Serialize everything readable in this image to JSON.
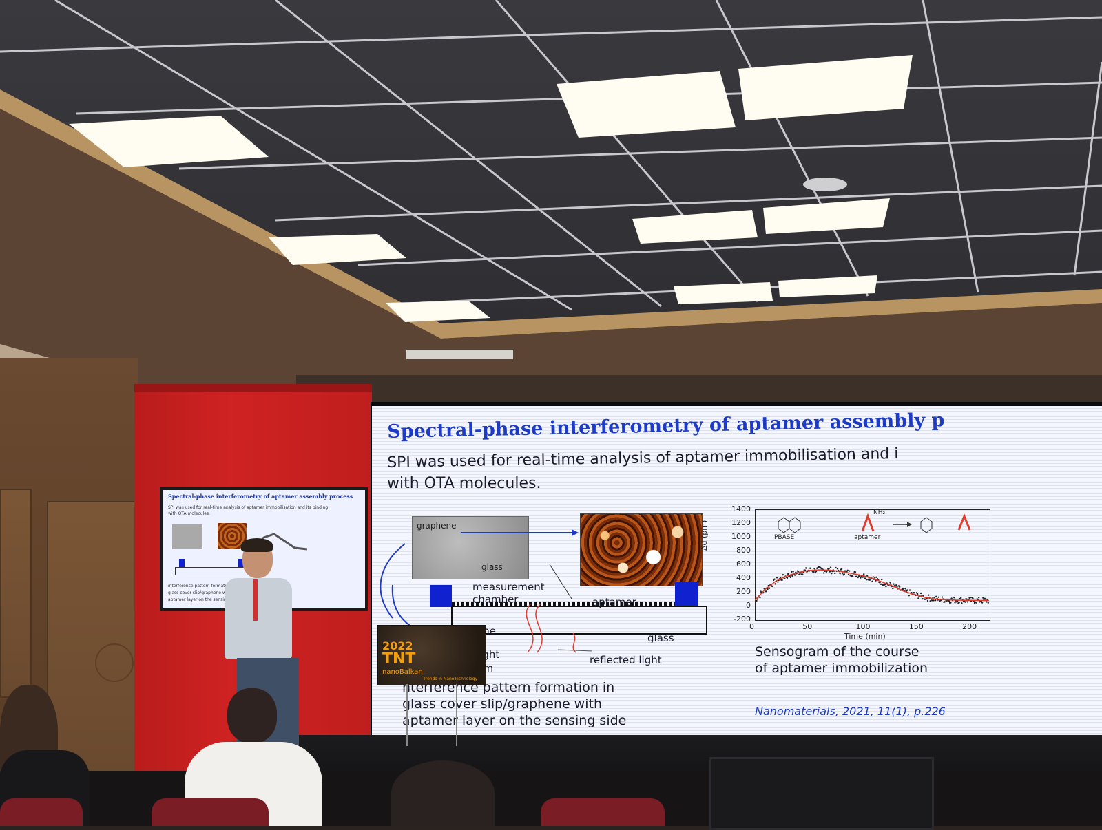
{
  "slide": {
    "title": "Spectral-phase interferometry of aptamer assembly p",
    "subtitle_line1": "SPI was used for real-time analysis of aptamer immobilisation and i",
    "subtitle_line2": "with OTA molecules.",
    "graphene_label": "graphene",
    "glass_label_top": "glass",
    "measurement_label_1": "measurement",
    "measurement_label_2": "chamber",
    "aptamer_label": "aptamer",
    "glass_label_bottom": "glass",
    "partial_ane": "ane",
    "partial_light": "light",
    "partial_nm": "nm",
    "reflected_light": "reflected light",
    "caption_line1": "nterference pattern formation in",
    "caption_line2": "glass cover slip/graphene with",
    "caption_line3": "aptamer layer on the sensing side",
    "sensogram_line1": "Sensogram of the course",
    "sensogram_line2": "of aptamer immobilization",
    "citation": "Nanomaterials, 2021, 11(1), p.226",
    "inset_pbase": "PBASE",
    "inset_aptamer": "aptamer",
    "inset_nh2": "NH₂"
  },
  "chart_data": {
    "type": "scatter",
    "xlabel": "Time (min)",
    "ylabel": "Δd (pm)",
    "xlim": [
      0,
      220
    ],
    "ylim": [
      -200,
      1400
    ],
    "xticks": [
      "0",
      "50",
      "100",
      "150",
      "200"
    ],
    "yticks": [
      "1400",
      "1200",
      "1000",
      "800",
      "600",
      "400",
      "200",
      "0",
      "-200"
    ],
    "x": [
      0,
      10,
      20,
      30,
      40,
      50,
      60,
      70,
      80,
      90,
      100,
      110,
      120,
      130,
      140,
      150,
      160,
      170,
      180,
      190,
      200,
      210,
      220
    ],
    "y": [
      80,
      240,
      360,
      430,
      480,
      510,
      520,
      515,
      500,
      470,
      440,
      400,
      340,
      280,
      210,
      160,
      120,
      95,
      85,
      80,
      78,
      76,
      75
    ],
    "grid": false
  },
  "monitor": {
    "title": "Spectral-phase interferometry of aptamer assembly process",
    "line1": "SPI was used for real-time analysis of aptamer immobilisation and its binding",
    "line2": "with OTA molecules.",
    "line3": "interference pattern formation in",
    "line4": "glass cover slip/graphene with",
    "line5": "aptamer layer on the sensing side"
  },
  "podium": {
    "year": "2022",
    "name": "TNT",
    "sub1": "nanoBalkan",
    "sub2": "Trends in NanoTechnology"
  },
  "colors": {
    "slide_title": "#1d3bc4",
    "red_column": "#c81e1e",
    "chart_line": "#e23b2a",
    "chamber_block": "#1022d0"
  }
}
